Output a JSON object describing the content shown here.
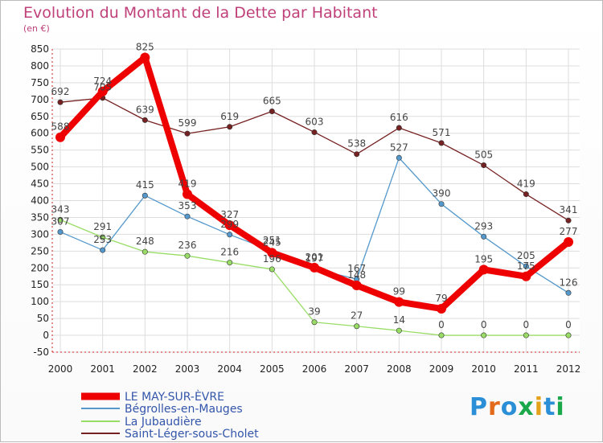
{
  "chart_data": {
    "type": "line",
    "title": "Evolution du Montant de la Dette par Habitant",
    "subtitle": "(en €)",
    "x": [
      "2000",
      "2001",
      "2002",
      "2003",
      "2004",
      "2005",
      "2006",
      "2007",
      "2008",
      "2009",
      "2010",
      "2011",
      "2012"
    ],
    "ylim": [
      -50,
      850
    ],
    "yticks": [
      -50,
      0,
      50,
      100,
      150,
      200,
      250,
      300,
      350,
      400,
      450,
      500,
      550,
      600,
      650,
      700,
      750,
      800,
      850
    ],
    "grid": true,
    "legend_position": "bottom-left",
    "series": [
      {
        "name": "LE MAY-SUR-ÈVRE",
        "color": "#ee0000",
        "values": [
          588,
          724,
          825,
          419,
          327,
          245,
          201,
          148,
          99,
          79,
          195,
          175,
          277
        ]
      },
      {
        "name": "Bégrolles-en-Mauges",
        "color": "#5599cc",
        "values": [
          307,
          253,
          415,
          353,
          299,
          251,
          197,
          167,
          527,
          390,
          293,
          205,
          126
        ]
      },
      {
        "name": "La Jubaudière",
        "color": "#99dd66",
        "values": [
          343,
          291,
          248,
          236,
          216,
          196,
          39,
          27,
          14,
          0,
          0,
          0,
          0
        ]
      },
      {
        "name": "Saint-Léger-sous-Cholet",
        "color": "#772222",
        "values": [
          692,
          705,
          639,
          599,
          619,
          665,
          603,
          538,
          616,
          571,
          505,
          419,
          341
        ]
      }
    ]
  },
  "logo": {
    "text": "Proxiti",
    "colors": [
      "#2a8fd6",
      "#e36a1a",
      "#2a8fd6",
      "#1aa84a",
      "#e3a21a",
      "#2a8fd6",
      "#1aa84a"
    ]
  }
}
